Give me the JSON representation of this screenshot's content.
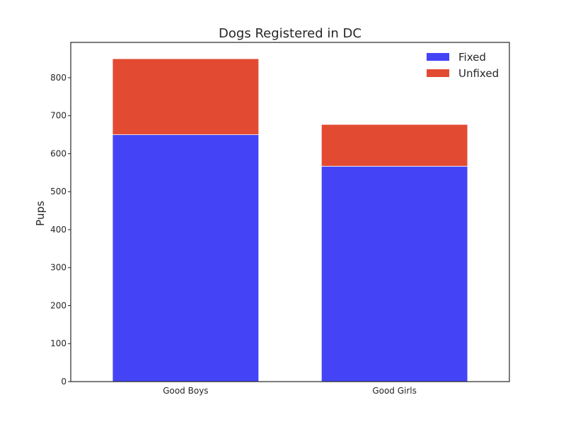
{
  "chart_data": {
    "type": "bar",
    "stacked": true,
    "title": "Dogs Registered in DC",
    "xlabel": "",
    "ylabel": "Pups",
    "categories": [
      "Good Boys",
      "Good Girls"
    ],
    "series": [
      {
        "name": "Fixed",
        "color": "#4444f6",
        "values": [
          650,
          567
        ]
      },
      {
        "name": "Unfixed",
        "color": "#e24b32",
        "values": [
          200,
          110
        ]
      }
    ],
    "ylim": [
      0,
      893
    ],
    "yticks": [
      "0",
      "100",
      "200",
      "300",
      "400",
      "500",
      "600",
      "700",
      "800"
    ],
    "grid": false,
    "legend_position": "top-right"
  }
}
